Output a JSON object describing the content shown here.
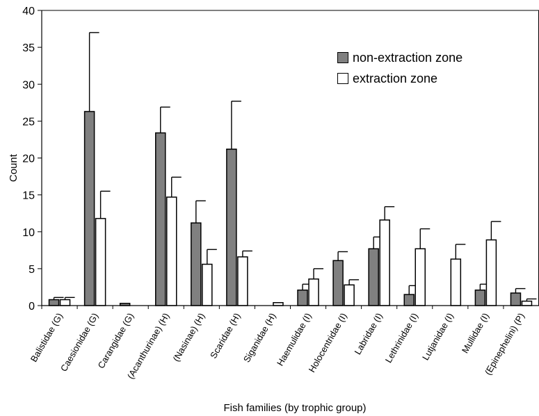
{
  "chart_data": {
    "type": "bar",
    "title": "",
    "xlabel": "Fish families (by trophic group)",
    "ylabel": "Count",
    "ylim": [
      0,
      40
    ],
    "yticks": [
      0,
      5,
      10,
      15,
      20,
      25,
      30,
      35,
      40
    ],
    "grid": false,
    "legend_position": "top-right",
    "categories": [
      "Balistidae (G)",
      "Caesionidae (G)",
      "Carangidae (G)",
      "(Acanthurinae) (H)",
      "(Nasinae) (H)",
      "Scaridae (H)",
      "Siganidae (H)",
      "Haemulidae (I)",
      "Holocentridae (I)",
      "Labridae (I)",
      "Lethrinidae (I)",
      "Lutjanidae (I)",
      "Mullidae (I)",
      "(Epinephelini) (P)"
    ],
    "series": [
      {
        "name": "non-extraction zone",
        "color": "#808080",
        "values": [
          0.8,
          26.3,
          0.3,
          23.4,
          11.2,
          21.2,
          0,
          2.1,
          6.1,
          7.7,
          1.5,
          0,
          2.1,
          1.7
        ],
        "errors": [
          0.3,
          10.7,
          0,
          3.5,
          3.0,
          6.5,
          0,
          0.8,
          1.2,
          1.6,
          1.2,
          0,
          0.8,
          0.6
        ]
      },
      {
        "name": "extraction zone",
        "color": "#ffffff",
        "values": [
          0.8,
          11.8,
          0,
          14.7,
          5.6,
          6.6,
          0.4,
          3.6,
          2.8,
          11.6,
          7.7,
          6.3,
          8.9,
          0.6
        ],
        "errors": [
          0.3,
          3.7,
          0,
          2.7,
          2.0,
          0.8,
          0,
          1.4,
          0.7,
          1.8,
          2.7,
          2.0,
          2.5,
          0.3
        ]
      }
    ]
  }
}
